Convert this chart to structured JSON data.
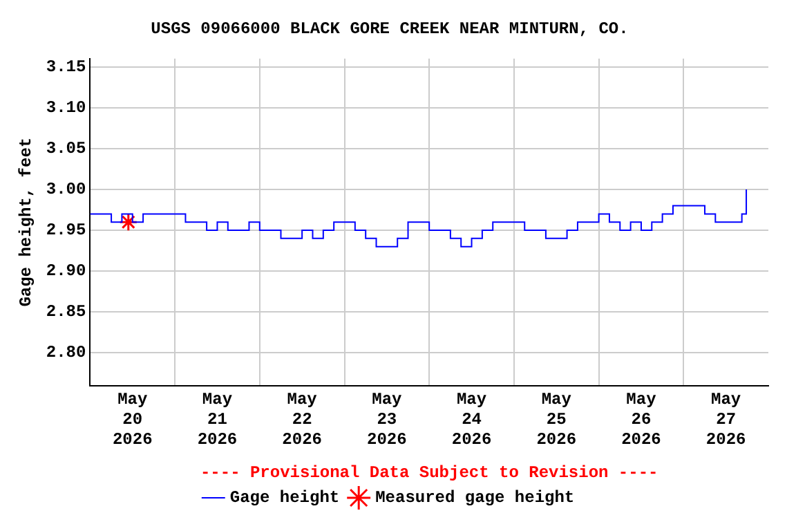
{
  "chart_data": {
    "type": "step",
    "title": "USGS 09066000 BLACK GORE CREEK NEAR MINTURN, CO.",
    "ylabel": "Gage height, feet",
    "annotations": [
      "---- Provisional Data Subject to Revision ----"
    ],
    "xlim": [
      "2026-05-20T00:00",
      "2026-05-28T00:00"
    ],
    "xticks": [
      {
        "value": "2026-05-20T12:00",
        "label": "May\n20\n2026"
      },
      {
        "value": "2026-05-21T00:00",
        "label": null
      },
      {
        "value": "2026-05-21T12:00",
        "label": "May\n21\n2026"
      },
      {
        "value": "2026-05-22T00:00",
        "label": null
      },
      {
        "value": "2026-05-22T12:00",
        "label": "May\n22\n2026"
      },
      {
        "value": "2026-05-23T00:00",
        "label": null
      },
      {
        "value": "2026-05-23T12:00",
        "label": "May\n23\n2026"
      },
      {
        "value": "2026-05-24T00:00",
        "label": null
      },
      {
        "value": "2026-05-24T12:00",
        "label": "May\n24\n2026"
      },
      {
        "value": "2026-05-25T00:00",
        "label": null
      },
      {
        "value": "2026-05-25T12:00",
        "label": "May\n25\n2026"
      },
      {
        "value": "2026-05-26T00:00",
        "label": null
      },
      {
        "value": "2026-05-26T12:00",
        "label": "May\n26\n2026"
      },
      {
        "value": "2026-05-27T00:00",
        "label": null
      },
      {
        "value": "2026-05-27T12:00",
        "label": "May\n27\n2026"
      }
    ],
    "ylim": [
      2.76,
      3.16
    ],
    "yticks": [
      {
        "value": 2.8,
        "label": "2.80"
      },
      {
        "value": 2.85,
        "label": "2.85"
      },
      {
        "value": 2.9,
        "label": "2.90"
      },
      {
        "value": 2.95,
        "label": "2.95"
      },
      {
        "value": 3.0,
        "label": "3.00"
      },
      {
        "value": 3.05,
        "label": "3.05"
      },
      {
        "value": 3.1,
        "label": "3.10"
      },
      {
        "value": 3.15,
        "label": "3.15"
      }
    ],
    "grid": true,
    "legend": "bottom",
    "series": [
      {
        "name": "Gage height",
        "color": "#0000ff",
        "marker": "none",
        "x": [
          "2026-05-20T00:00",
          "2026-05-20T03:00",
          "2026-05-20T06:00",
          "2026-05-20T09:00",
          "2026-05-20T12:00",
          "2026-05-20T15:00",
          "2026-05-20T18:00",
          "2026-05-20T21:00",
          "2026-05-21T00:00",
          "2026-05-21T03:00",
          "2026-05-21T06:00",
          "2026-05-21T09:00",
          "2026-05-21T12:00",
          "2026-05-21T15:00",
          "2026-05-21T18:00",
          "2026-05-21T21:00",
          "2026-05-22T00:00",
          "2026-05-22T03:00",
          "2026-05-22T06:00",
          "2026-05-22T09:00",
          "2026-05-22T12:00",
          "2026-05-22T15:00",
          "2026-05-22T18:00",
          "2026-05-22T21:00",
          "2026-05-23T00:00",
          "2026-05-23T03:00",
          "2026-05-23T06:00",
          "2026-05-23T09:00",
          "2026-05-23T12:00",
          "2026-05-23T15:00",
          "2026-05-23T18:00",
          "2026-05-23T21:00",
          "2026-05-24T00:00",
          "2026-05-24T03:00",
          "2026-05-24T06:00",
          "2026-05-24T09:00",
          "2026-05-24T12:00",
          "2026-05-24T15:00",
          "2026-05-24T18:00",
          "2026-05-24T21:00",
          "2026-05-25T00:00",
          "2026-05-25T03:00",
          "2026-05-25T06:00",
          "2026-05-25T09:00",
          "2026-05-25T12:00",
          "2026-05-25T15:00",
          "2026-05-25T18:00",
          "2026-05-25T21:00",
          "2026-05-26T00:00",
          "2026-05-26T03:00",
          "2026-05-26T06:00",
          "2026-05-26T09:00",
          "2026-05-26T12:00",
          "2026-05-26T15:00",
          "2026-05-26T18:00",
          "2026-05-26T21:00",
          "2026-05-27T00:00",
          "2026-05-27T03:00",
          "2026-05-27T06:00",
          "2026-05-27T09:00",
          "2026-05-27T12:00",
          "2026-05-27T15:00",
          "2026-05-27T16:30",
          "2026-05-27T17:45"
        ],
        "values": [
          2.97,
          2.97,
          2.96,
          2.97,
          2.96,
          2.97,
          2.97,
          2.97,
          2.97,
          2.96,
          2.96,
          2.95,
          2.96,
          2.95,
          2.95,
          2.96,
          2.95,
          2.95,
          2.94,
          2.94,
          2.95,
          2.94,
          2.95,
          2.96,
          2.96,
          2.95,
          2.94,
          2.93,
          2.93,
          2.94,
          2.96,
          2.96,
          2.95,
          2.95,
          2.94,
          2.93,
          2.94,
          2.95,
          2.96,
          2.96,
          2.96,
          2.95,
          2.95,
          2.94,
          2.94,
          2.95,
          2.96,
          2.96,
          2.97,
          2.96,
          2.95,
          2.96,
          2.95,
          2.96,
          2.97,
          2.98,
          2.98,
          2.98,
          2.97,
          2.96,
          2.96,
          2.96,
          2.97,
          3.0
        ]
      },
      {
        "name": "Measured gage height",
        "type": "scatter",
        "color": "#ff0000",
        "marker": "cross",
        "x": [
          "2026-05-20T10:50"
        ],
        "values": [
          2.96
        ]
      }
    ]
  }
}
